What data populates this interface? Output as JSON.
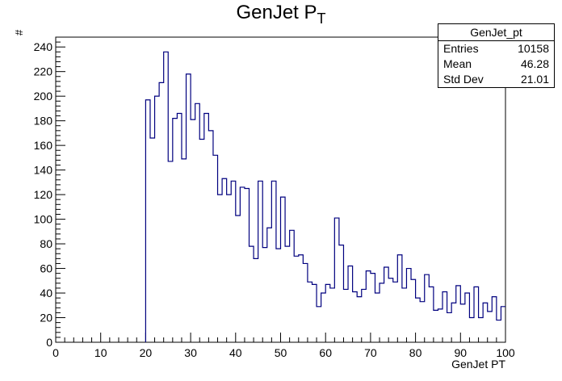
{
  "chart_data": {
    "type": "histogram",
    "title": "GenJet P",
    "title_subscript": "T",
    "xlabel": "GenJet PT",
    "ylabel": "#",
    "xlim": [
      0,
      100
    ],
    "ylim": [
      0,
      248
    ],
    "x_ticks": [
      0,
      10,
      20,
      30,
      40,
      50,
      60,
      70,
      80,
      90,
      100
    ],
    "y_ticks": [
      0,
      20,
      40,
      60,
      80,
      100,
      120,
      140,
      160,
      180,
      200,
      220,
      240
    ],
    "bin_width": 1,
    "bins_start": 20,
    "values": [
      197,
      166,
      200,
      211,
      236,
      147,
      182,
      186,
      149,
      218,
      181,
      194,
      165,
      186,
      172,
      152,
      120,
      133,
      120,
      131,
      103,
      126,
      125,
      78,
      68,
      131,
      77,
      93,
      131,
      76,
      118,
      78,
      91,
      70,
      71,
      64,
      49,
      47,
      29,
      40,
      47,
      44,
      101,
      79,
      43,
      62,
      41,
      37,
      43,
      58,
      56,
      40,
      48,
      61,
      52,
      49,
      71,
      44,
      60,
      51,
      36,
      33,
      55,
      45,
      26,
      27,
      41,
      24,
      32,
      46,
      31,
      40,
      20,
      45,
      20,
      32,
      25,
      37,
      18,
      29
    ],
    "line_color": "#00007f",
    "grid": false
  },
  "stats": {
    "name": "GenJet_pt",
    "entries_label": "Entries",
    "entries": "10158",
    "mean_label": "Mean",
    "mean": "46.28",
    "stddev_label": "Std Dev",
    "stddev": "21.01"
  }
}
